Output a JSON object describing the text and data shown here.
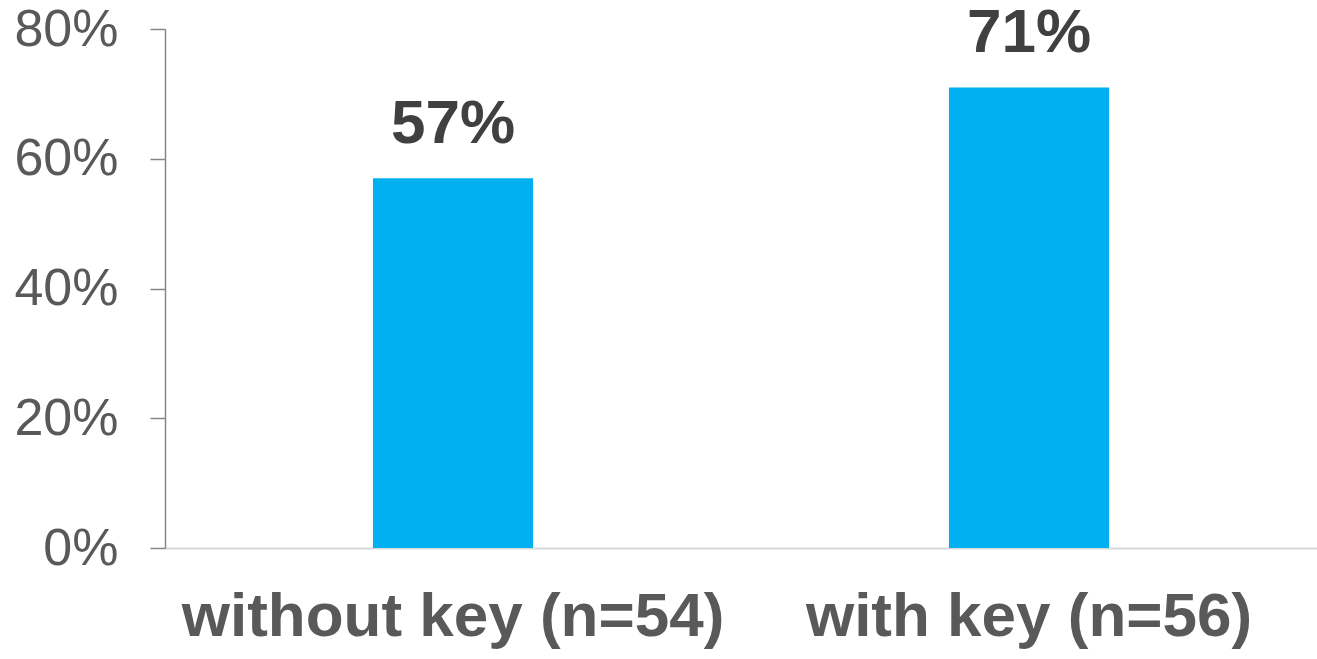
{
  "chart_data": {
    "type": "bar",
    "categories": [
      "without key (n=54)",
      "with key (n=56)"
    ],
    "values": [
      57,
      71
    ],
    "color": "#00b0f0",
    "value_labels": [
      "57%",
      "71%"
    ],
    "ylim": [
      0,
      80
    ],
    "yticks": [
      {
        "value": 0,
        "label": "0%"
      },
      {
        "value": 20,
        "label": "20%"
      },
      {
        "value": 40,
        "label": "40%"
      },
      {
        "value": 60,
        "label": "60%"
      },
      {
        "value": 80,
        "label": "80%"
      }
    ]
  }
}
